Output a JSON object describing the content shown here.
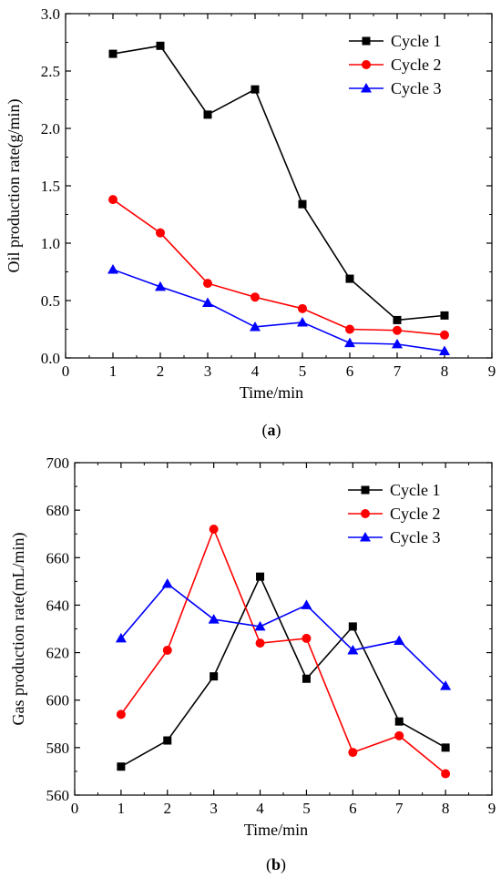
{
  "chart_data": [
    {
      "type": "line",
      "panel_label": "(a)",
      "panel_letter": "a",
      "xlabel": "Time/min",
      "ylabel": "Oil production rate(g/min)",
      "xlim": [
        0,
        9
      ],
      "ylim": [
        0,
        3.0
      ],
      "xticks": [
        0,
        1,
        2,
        3,
        4,
        5,
        6,
        7,
        8,
        9
      ],
      "yticks": [
        "0.0",
        "0.5",
        "1.0",
        "1.5",
        "2.0",
        "2.5",
        "3.0"
      ],
      "grid": false,
      "legend_position": "top-right",
      "x": [
        1,
        2,
        3,
        4,
        5,
        6,
        7,
        8
      ],
      "series": [
        {
          "name": "Cycle 1",
          "color": "#000000",
          "marker": "square",
          "values": [
            2.65,
            2.72,
            2.12,
            2.34,
            1.34,
            0.69,
            0.33,
            0.37
          ]
        },
        {
          "name": "Cycle 2",
          "color": "#ff0000",
          "marker": "circle",
          "values": [
            1.38,
            1.09,
            0.65,
            0.53,
            0.43,
            0.25,
            0.24,
            0.2
          ]
        },
        {
          "name": "Cycle 3",
          "color": "#0000ff",
          "marker": "triangle",
          "values": [
            0.77,
            0.62,
            0.48,
            0.27,
            0.31,
            0.13,
            0.12,
            0.06
          ]
        }
      ]
    },
    {
      "type": "line",
      "panel_label": "(b)",
      "panel_letter": "b",
      "xlabel": "Time/min",
      "ylabel": "Gas production rate(mL/min)",
      "xlim": [
        0,
        9
      ],
      "ylim": [
        560,
        700
      ],
      "xticks": [
        0,
        1,
        2,
        3,
        4,
        5,
        6,
        7,
        8,
        9
      ],
      "yticks": [
        "560",
        "580",
        "600",
        "620",
        "640",
        "660",
        "680",
        "700"
      ],
      "grid": false,
      "legend_position": "top-right",
      "x": [
        1,
        2,
        3,
        4,
        5,
        6,
        7,
        8
      ],
      "series": [
        {
          "name": "Cycle 1",
          "color": "#000000",
          "marker": "square",
          "values": [
            572,
            583,
            610,
            652,
            609,
            631,
            591,
            580
          ]
        },
        {
          "name": "Cycle 2",
          "color": "#ff0000",
          "marker": "circle",
          "values": [
            594,
            621,
            672,
            624,
            626,
            578,
            585,
            569
          ]
        },
        {
          "name": "Cycle 3",
          "color": "#0000ff",
          "marker": "triangle",
          "values": [
            626,
            649,
            634,
            631,
            640,
            621,
            625,
            606
          ]
        }
      ]
    }
  ]
}
